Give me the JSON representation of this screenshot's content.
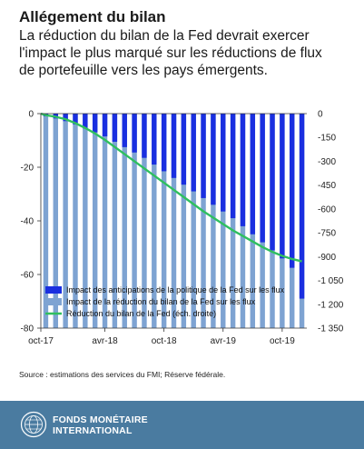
{
  "title": "Allégement du bilan",
  "subtitle_lines": [
    "La réduction du bilan de la Fed devrait exercer",
    "l'impact le plus marqué sur les réductions de flux",
    "de portefeuille vers les pays émergents."
  ],
  "source": "Source : estimations des services du FMI; Réserve fédérale.",
  "footer": {
    "brand_line1": "FONDS MONÉTAIRE",
    "brand_line2": "INTERNATIONAL",
    "logo": "imf-seal"
  },
  "colors": {
    "anticipation_bar": "#1a2fe0",
    "reduction_bar": "#7ea3d2",
    "balance_line": "#2fbf5f",
    "footer_bg": "#4a7ba0"
  },
  "chart_data": {
    "type": "bar",
    "x_ticks": [
      "oct-17",
      "avr-18",
      "oct-18",
      "avr-19",
      "oct-19"
    ],
    "x": [
      "2017-10",
      "2017-11",
      "2017-12",
      "2018-01",
      "2018-02",
      "2018-03",
      "2018-04",
      "2018-05",
      "2018-06",
      "2018-07",
      "2018-08",
      "2018-09",
      "2018-10",
      "2018-11",
      "2018-12",
      "2019-01",
      "2019-02",
      "2019-03",
      "2019-04",
      "2019-05",
      "2019-06",
      "2019-07",
      "2019-08",
      "2019-09",
      "2019-10",
      "2019-11",
      "2019-12"
    ],
    "y_left": {
      "min": -80,
      "max": 0,
      "ticks": [
        0,
        -20,
        -40,
        -60,
        -80
      ]
    },
    "y_right": {
      "min": -1350,
      "max": 0,
      "ticks": [
        "0",
        "-150",
        "-300",
        "-450",
        "-600",
        "-750",
        "-900",
        "-1 050",
        "-1 200",
        "-1 350"
      ],
      "label_side": "right"
    },
    "series": [
      {
        "name": "Impact des anticipations de la politique de la Fed sur les flux",
        "type": "bar",
        "axis": "left",
        "values": [
          -1.0,
          -1.8,
          -2.8,
          -4.0,
          -5.5,
          -7.0,
          -8.5,
          -10.5,
          -12.5,
          -14.5,
          -16.5,
          -19.0,
          -21.5,
          -24.0,
          -26.5,
          -29.0,
          -31.5,
          -34.0,
          -36.5,
          -39.0,
          -42.0,
          -45.0,
          -48.0,
          -51.0,
          -54.0,
          -57.5,
          -69.0
        ]
      },
      {
        "name": "Impact de la réduction du bilan de la Fed sur les flux",
        "type": "bar",
        "axis": "left",
        "values": [
          -80,
          -80,
          -80,
          -80,
          -80,
          -80,
          -80,
          -80,
          -80,
          -80,
          -80,
          -80,
          -80,
          -80,
          -80,
          -80,
          -80,
          -80,
          -80,
          -80,
          -80,
          -80,
          -80,
          -80,
          -80,
          -80,
          -80
        ]
      },
      {
        "name": "Réduction du bilan de la Fed (éch. droite)",
        "type": "line",
        "axis": "right",
        "values": [
          -10,
          -20,
          -35,
          -60,
          -90,
          -125,
          -165,
          -210,
          -255,
          -300,
          -345,
          -390,
          -435,
          -480,
          -525,
          -570,
          -615,
          -655,
          -695,
          -735,
          -770,
          -805,
          -840,
          -870,
          -895,
          -915,
          -930
        ]
      }
    ],
    "legend_position": "bottom-left",
    "grid": false
  }
}
